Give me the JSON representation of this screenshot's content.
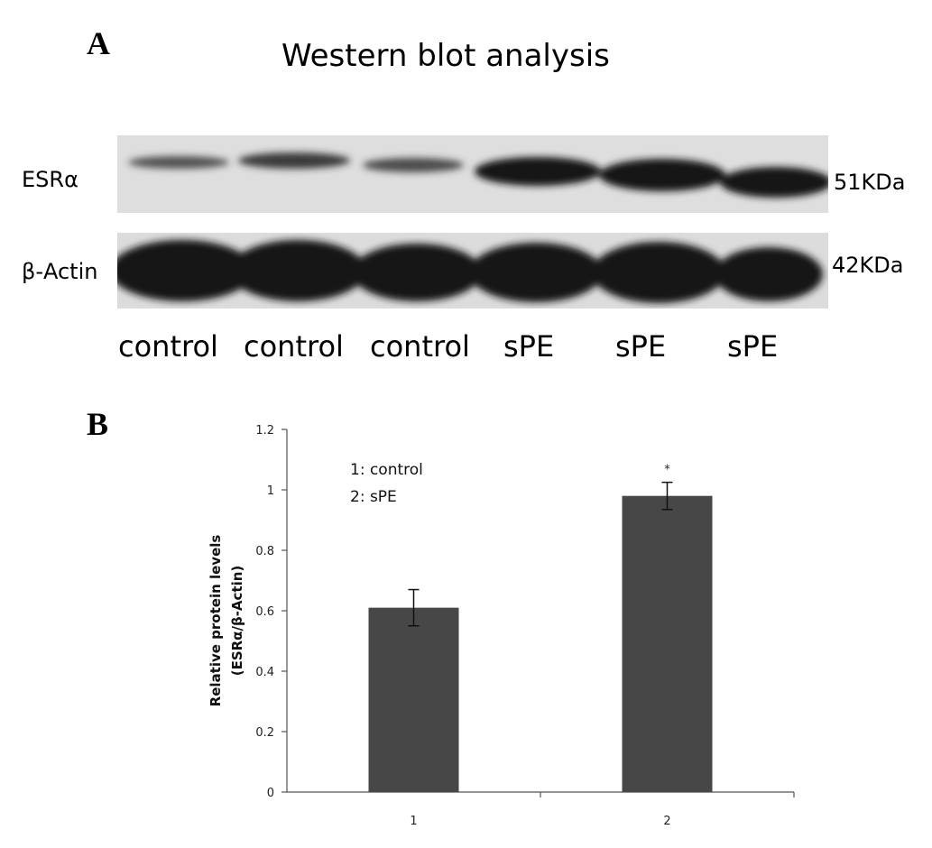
{
  "figure": {
    "panel_a_label": "A",
    "panel_b_label": "B"
  },
  "blot": {
    "title": "Western blot analysis",
    "rows": [
      {
        "label": "ESRα",
        "size": "51KDa"
      },
      {
        "label": "β-Actin",
        "size": "42KDa"
      }
    ],
    "lanes": [
      "control",
      "control",
      "control",
      "sPE",
      "sPE",
      "sPE"
    ]
  },
  "chart_data": {
    "type": "bar",
    "categories": [
      "1",
      "2"
    ],
    "values": [
      0.61,
      0.98
    ],
    "error": [
      0.06,
      0.045
    ],
    "annotations": [
      "",
      "*"
    ],
    "ylabel_line1": "Relative  protein  levels",
    "ylabel_line2": "(ESRα/β-Actin)",
    "xlabel": "",
    "ylim": [
      0,
      1.2
    ],
    "yticks": [
      0,
      0.2,
      0.4,
      0.6,
      0.8,
      1,
      1.2
    ],
    "legend": [
      "1: control",
      "2: sPE"
    ],
    "bar_color": "#474747",
    "grid": false
  }
}
